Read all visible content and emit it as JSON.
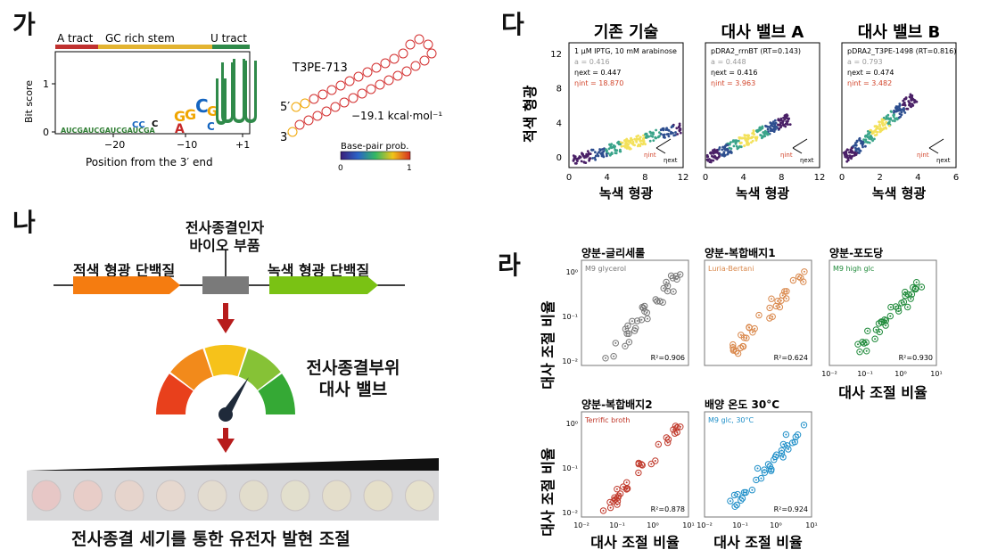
{
  "panels": {
    "ga": {
      "label": "가",
      "segments": [
        "A tract",
        "GC rich stem",
        "U tract"
      ],
      "segment_colors": [
        "#c0312f",
        "#e3b431",
        "#2f8a4a"
      ],
      "ylabel": "Bit score",
      "xlabel": "Position from the 3′ end",
      "xticks": [
        "−20",
        "−10",
        "+1"
      ],
      "yticks": [
        "0",
        "1"
      ],
      "structure_name": "T3PE-713",
      "energy": "−19.1 kcal·mol⁻¹",
      "five_prime": "5′",
      "three_prime": "3′",
      "colorbar_title": "Base-pair prob.",
      "colorbar_ticks": [
        "0",
        "1"
      ]
    },
    "na": {
      "label": "나",
      "terminator_label_line1": "전사종결인자",
      "terminator_label_line2": "바이오 부품",
      "red_protein": "적색 형광 단백질",
      "green_protein": "녹색 형광 단백질",
      "valve_line1": "전사종결부위",
      "valve_line2": "대사 밸브",
      "caption": "전사종결 세기를 통한 유전자 발현 조절",
      "gauge_colors": [
        "#e8401c",
        "#f28a1b",
        "#f6c21a",
        "#86c236",
        "#35a935"
      ],
      "arrow_color": "#b71c1c",
      "wells": 10
    },
    "da": {
      "label": "다",
      "ylabel": "적색 형광",
      "plots": [
        {
          "title": "기존 기술",
          "xlabel": "녹색 형광",
          "cond": "1 μM IPTG, 10 mM arabinose",
          "a": "a = 0.416",
          "eta_ext": "0.447",
          "eta_int": "18.870",
          "xticks": [
            "0",
            "4",
            "8",
            "12"
          ],
          "yticks": [
            "0",
            "4",
            "8",
            "12"
          ]
        },
        {
          "title": "대사 밸브 A",
          "xlabel": "녹색 형광",
          "cond": "pDRA2_rrnBT (RT=0.143)",
          "a": "a = 0.448",
          "eta_ext": "0.416",
          "eta_int": "3.963",
          "xticks": [
            "0",
            "4",
            "8",
            "12"
          ],
          "yticks": []
        },
        {
          "title": "대사 밸브 B",
          "xlabel": "녹색 형광",
          "cond": "pDRA2_T3PE-1498 (RT=0.816)",
          "a": "a = 0.793",
          "eta_ext": "0.474",
          "eta_int": "3.482",
          "xticks": [
            "0",
            "2",
            "4",
            "6"
          ],
          "yticks": []
        }
      ],
      "eta_label": "η",
      "sub_ext": "ext",
      "sub_int": "int"
    },
    "ra": {
      "label": "라",
      "ylabel": "대사 조절 비율",
      "xlabel": "대사 조절 비율",
      "plots": [
        {
          "title": "양분-글리세롤",
          "tag": "M9 glycerol",
          "r2": "R²=0.906",
          "color": "#777777"
        },
        {
          "title": "양분-복합배지1",
          "tag": "Luria-Bertani",
          "r2": "R²=0.624",
          "color": "#d9874a"
        },
        {
          "title": "양분-포도당",
          "tag": "M9 high glc",
          "r2": "R²=0.930",
          "color": "#1f8a3a"
        },
        {
          "title": "양분-복합배지2",
          "tag": "Terrific broth",
          "r2": "R²=0.878",
          "color": "#c0392b"
        },
        {
          "title": "배양 온도 30°C",
          "tag": "M9 glc, 30°C",
          "r2": "R²=0.924",
          "color": "#1f8fc8"
        }
      ],
      "xticks": [
        "10⁻²",
        "10⁻¹",
        "10⁰",
        "10¹"
      ],
      "yticks": [
        "10⁻²",
        "10⁻¹",
        "10⁰"
      ]
    }
  }
}
